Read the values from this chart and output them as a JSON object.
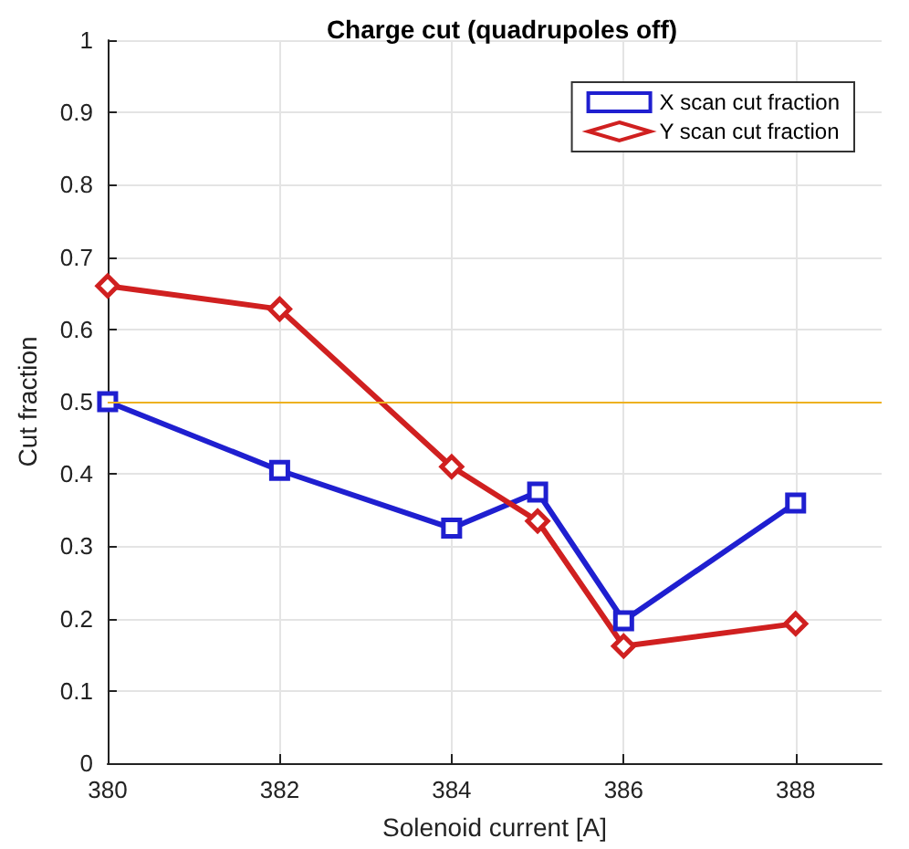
{
  "chart_data": {
    "type": "line",
    "title": "Charge cut (quadrupoles off)",
    "xlabel": "Solenoid current [A]",
    "ylabel": "Cut fraction",
    "x": [
      380,
      382,
      384,
      385,
      386,
      388
    ],
    "series": [
      {
        "name": "X scan cut fraction",
        "color": "#1f1fd0",
        "marker": "square",
        "values": [
          0.5,
          0.405,
          0.325,
          0.375,
          0.197,
          0.36
        ]
      },
      {
        "name": "Y scan cut fraction",
        "color": "#d02020",
        "marker": "diamond",
        "values": [
          0.66,
          0.628,
          0.41,
          0.335,
          0.162,
          0.193
        ]
      }
    ],
    "xlim": [
      380,
      389
    ],
    "xticks": [
      380,
      382,
      384,
      386,
      388
    ],
    "ylim": [
      0,
      1
    ],
    "yticks": [
      0,
      0.1,
      0.2,
      0.3,
      0.4,
      0.5,
      0.6,
      0.7,
      0.8,
      0.9,
      1
    ],
    "ref_lines": [
      {
        "axis": "y",
        "value": 0.5,
        "label": null,
        "color": "#edb120"
      }
    ],
    "grid": true,
    "legend": "top right",
    "line_style": "solid"
  }
}
